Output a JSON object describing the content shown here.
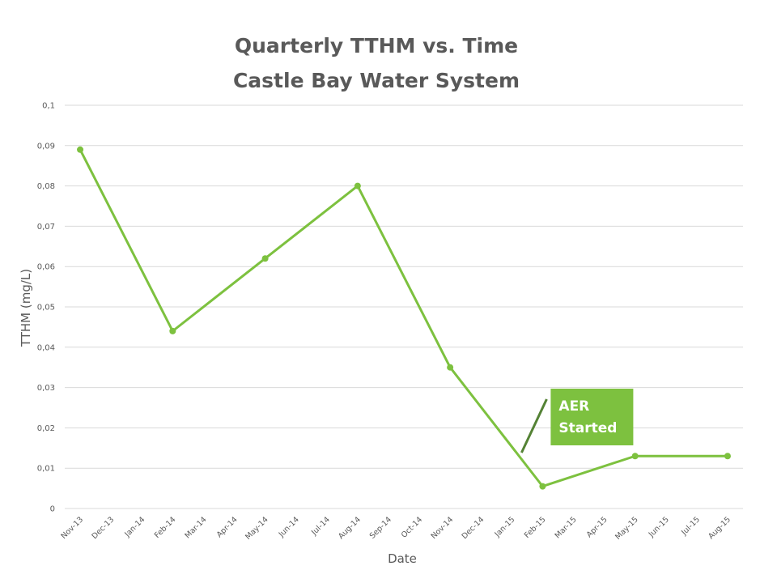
{
  "chart_data": {
    "type": "line",
    "title": "Quarterly TTHM vs. Time",
    "subtitle": "Castle Bay Water System",
    "xlabel": "Date",
    "ylabel": "TTHM (mg/L)",
    "ylim": [
      0,
      0.1
    ],
    "y_ticks": [
      "0",
      "0,01",
      "0,02",
      "0,03",
      "0,04",
      "0,05",
      "0,06",
      "0,07",
      "0,08",
      "0,09",
      "0,1"
    ],
    "categories": [
      "Nov-13",
      "Dec-13",
      "Jan-14",
      "Feb-14",
      "Mar-14",
      "Apr-14",
      "May-14",
      "Jun-14",
      "Jul-14",
      "Aug-14",
      "Sep-14",
      "Oct-14",
      "Nov-14",
      "Dec-14",
      "Jan-15",
      "Feb-15",
      "Mar-15",
      "Apr-15",
      "May-15",
      "Jun-15",
      "Jul-15",
      "Aug-15"
    ],
    "series": [
      {
        "points": [
          {
            "x": "Nov-13",
            "y": 0.089
          },
          {
            "x": "Feb-14",
            "y": 0.044
          },
          {
            "x": "May-14",
            "y": 0.062
          },
          {
            "x": "Aug-14",
            "y": 0.08
          },
          {
            "x": "Nov-14",
            "y": 0.035
          },
          {
            "x": "Feb-15",
            "y": 0.0055
          },
          {
            "x": "May-15",
            "y": 0.013
          },
          {
            "x": "Aug-15",
            "y": 0.013
          }
        ]
      }
    ],
    "grid": true,
    "annotation": {
      "text_line1": "AER",
      "text_line2": "Started",
      "x": "Feb-15"
    }
  },
  "colors": {
    "line": "#7dc13f",
    "callout_fill": "#7dc13f",
    "callout_pointer": "#548235",
    "grid": "#d9d9d9",
    "text": "#595959"
  }
}
